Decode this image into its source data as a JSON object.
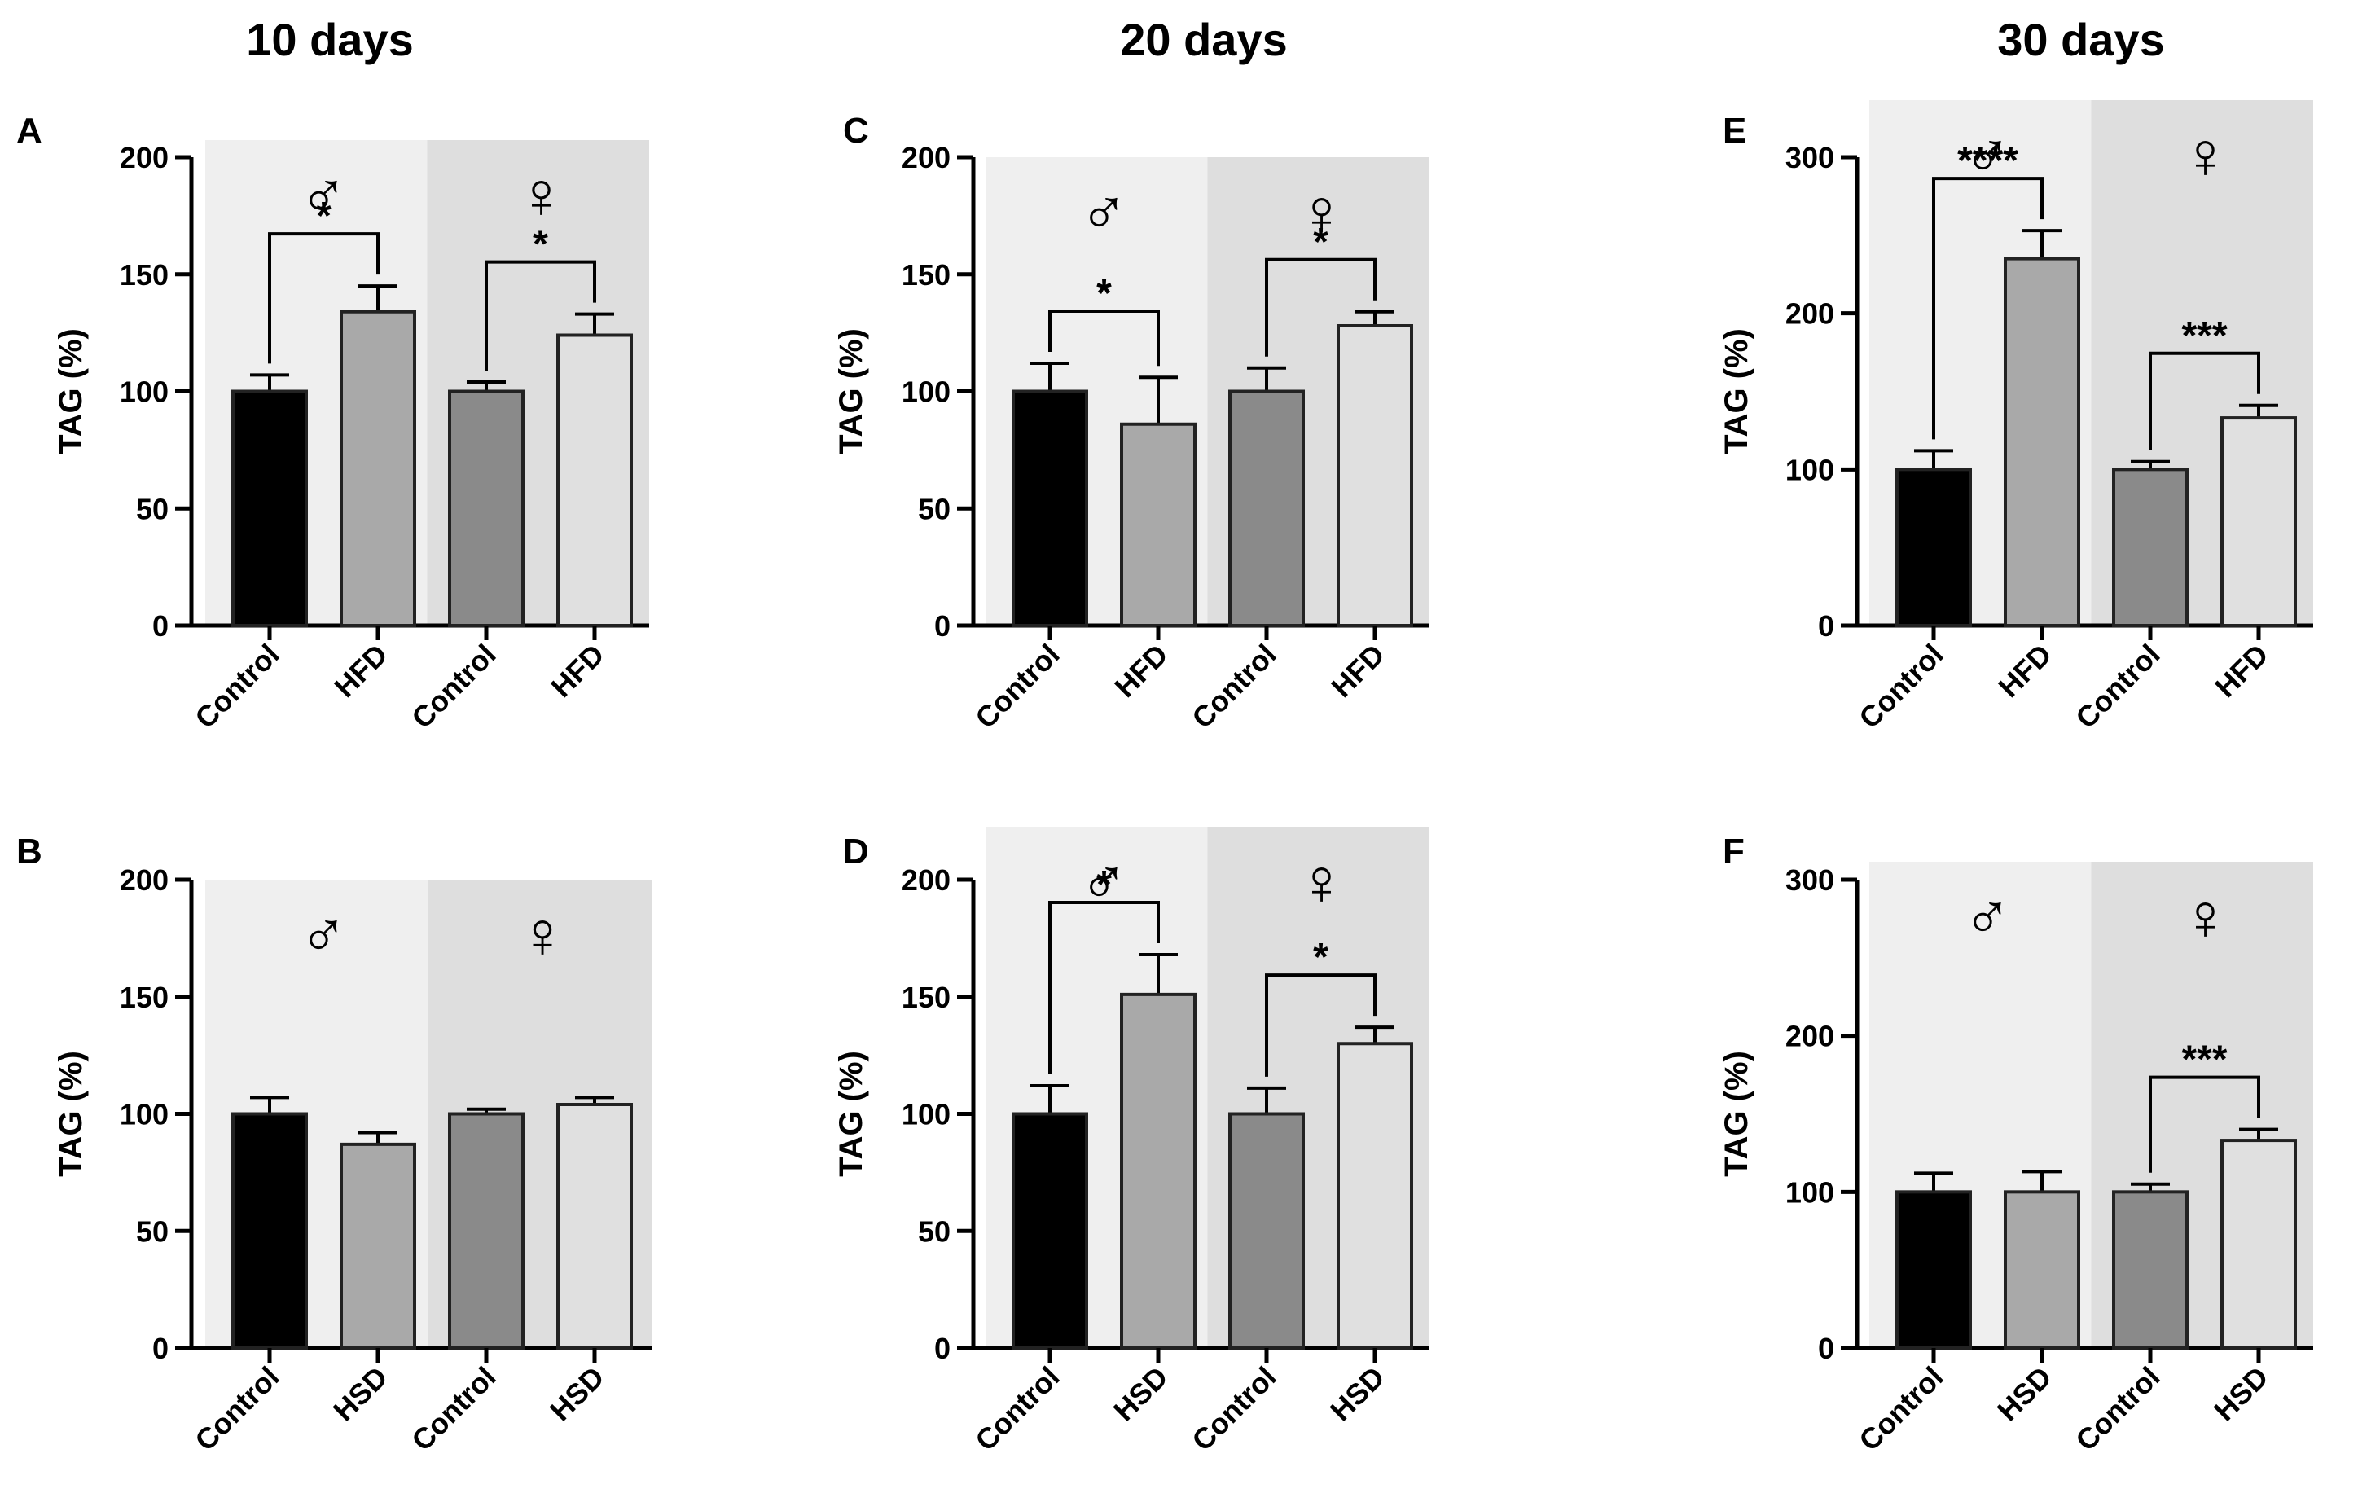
{
  "column_titles": [
    "10 days",
    "20 days",
    "30 days"
  ],
  "colors": {
    "male_bg": "#efefef",
    "female_bg": "#dedede",
    "control_male": "#000000",
    "diet_male": "#a9a9a9",
    "control_female": "#8a8a8a",
    "diet_female": "#e0e0e0"
  },
  "chart_data": [
    {
      "panel": "A",
      "type": "bar",
      "ylabel": "TAG (%)",
      "ylim": [
        0,
        200
      ],
      "yticks": [
        "0",
        "50",
        "100",
        "150",
        "200"
      ],
      "categories": [
        "Control",
        "HFD",
        "Control",
        "HFD"
      ],
      "group_symbols": [
        "♂",
        "♀"
      ],
      "values": [
        100,
        134,
        100,
        124
      ],
      "errors": [
        7,
        11,
        4,
        9
      ],
      "significance": [
        {
          "from": 0,
          "to": 1,
          "label": "*"
        },
        {
          "from": 2,
          "to": 3,
          "label": "*"
        }
      ]
    },
    {
      "panel": "B",
      "type": "bar",
      "ylabel": "TAG (%)",
      "ylim": [
        0,
        200
      ],
      "yticks": [
        "0",
        "50",
        "100",
        "150",
        "200"
      ],
      "categories": [
        "Control",
        "HSD",
        "Control",
        "HSD"
      ],
      "group_symbols": [
        "♂",
        "♀"
      ],
      "values": [
        100,
        87,
        100,
        104
      ],
      "errors": [
        7,
        5,
        2,
        3
      ],
      "significance": []
    },
    {
      "panel": "C",
      "type": "bar",
      "ylabel": "TAG (%)",
      "ylim": [
        0,
        200
      ],
      "yticks": [
        "0",
        "50",
        "100",
        "150",
        "200"
      ],
      "categories": [
        "Control",
        "HFD",
        "Control",
        "HFD"
      ],
      "group_symbols": [
        "♂",
        "♀"
      ],
      "values": [
        100,
        86,
        100,
        128
      ],
      "errors": [
        12,
        20,
        10,
        6
      ],
      "significance": [
        {
          "from": 0,
          "to": 1,
          "label": "*"
        },
        {
          "from": 2,
          "to": 3,
          "label": "*"
        }
      ]
    },
    {
      "panel": "D",
      "type": "bar",
      "ylabel": "TAG (%)",
      "ylim": [
        0,
        200
      ],
      "yticks": [
        "0",
        "50",
        "100",
        "150",
        "200"
      ],
      "categories": [
        "Control",
        "HSD",
        "Control",
        "HSD"
      ],
      "group_symbols": [
        "♂",
        "♀"
      ],
      "values": [
        100,
        151,
        100,
        130
      ],
      "errors": [
        12,
        17,
        11,
        7
      ],
      "significance": [
        {
          "from": 0,
          "to": 1,
          "label": "*"
        },
        {
          "from": 2,
          "to": 3,
          "label": "*"
        }
      ]
    },
    {
      "panel": "E",
      "type": "bar",
      "ylabel": "TAG (%)",
      "ylim": [
        0,
        300
      ],
      "yticks": [
        "0",
        "100",
        "200",
        "300"
      ],
      "categories": [
        "Control",
        "HFD",
        "Control",
        "HFD"
      ],
      "group_symbols": [
        "♂",
        "♀"
      ],
      "values": [
        100,
        235,
        100,
        133
      ],
      "errors": [
        12,
        18,
        5,
        8
      ],
      "significance": [
        {
          "from": 0,
          "to": 1,
          "label": "****"
        },
        {
          "from": 2,
          "to": 3,
          "label": "***"
        }
      ]
    },
    {
      "panel": "F",
      "type": "bar",
      "ylabel": "TAG (%)",
      "ylim": [
        0,
        300
      ],
      "yticks": [
        "0",
        "100",
        "200",
        "300"
      ],
      "categories": [
        "Control",
        "HSD",
        "Control",
        "HSD"
      ],
      "group_symbols": [
        "♂",
        "♀"
      ],
      "values": [
        100,
        100,
        100,
        133
      ],
      "errors": [
        12,
        13,
        5,
        7
      ],
      "significance": [
        {
          "from": 2,
          "to": 3,
          "label": "***"
        }
      ]
    }
  ]
}
